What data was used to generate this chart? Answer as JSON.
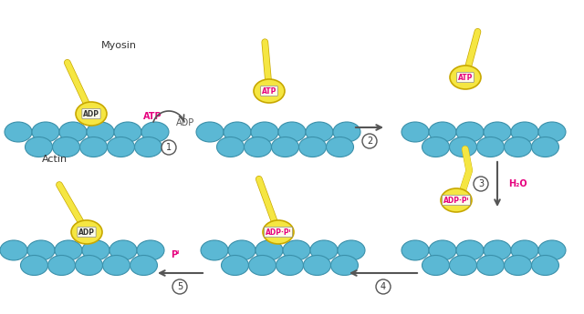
{
  "background": "#ffffff",
  "actin_color": "#5bb8d4",
  "actin_outline": "#3a90aa",
  "myosin_color": "#f5e642",
  "myosin_outline": "#c8a800",
  "label_adp": "ADP",
  "label_atp": "ATP",
  "label_adppi": "ADP·Pᴵ",
  "label_myosin": "Myosin",
  "label_actin": "Actin",
  "label_atp_pink": "ATP",
  "label_adp_pink": "ADP",
  "label_h2o": "H₂O",
  "label_pi": "Pᴵ",
  "step_colors": [
    "#000000",
    "#000000",
    "#000000",
    "#000000",
    "#000000"
  ],
  "pink": "#e6007e",
  "arrow_color": "#555555",
  "oval_label_bg": "#ffffff",
  "oval_label_border": "#333333"
}
